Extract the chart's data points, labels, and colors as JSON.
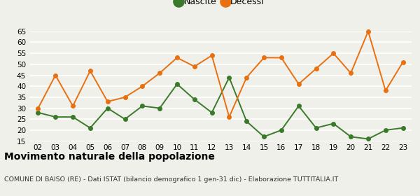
{
  "years": [
    "02",
    "03",
    "04",
    "05",
    "06",
    "07",
    "08",
    "09",
    "10",
    "11",
    "12",
    "13",
    "14",
    "15",
    "16",
    "17",
    "18",
    "19",
    "20",
    "21",
    "22",
    "23"
  ],
  "nascite": [
    28,
    26,
    26,
    21,
    30,
    25,
    31,
    30,
    41,
    34,
    28,
    44,
    24,
    17,
    20,
    31,
    21,
    23,
    17,
    16,
    20,
    21
  ],
  "decessi": [
    30,
    45,
    31,
    47,
    33,
    35,
    40,
    46,
    53,
    49,
    54,
    26,
    44,
    53,
    53,
    41,
    48,
    55,
    46,
    65,
    38,
    51
  ],
  "nascite_color": "#3a7a2a",
  "decessi_color": "#e87010",
  "background_color": "#f0f0eb",
  "grid_color": "#ffffff",
  "ylim": [
    15,
    65
  ],
  "yticks": [
    15,
    20,
    25,
    30,
    35,
    40,
    45,
    50,
    55,
    60,
    65
  ],
  "title": "Movimento naturale della popolazione",
  "subtitle": "COMUNE DI BAISO (RE) - Dati ISTAT (bilancio demografico 1 gen-31 dic) - Elaborazione TUTTITALIA.IT",
  "legend_nascite": "Nascite",
  "legend_decessi": "Decessi",
  "marker_size": 4,
  "line_width": 1.4,
  "tick_fontsize": 7.5,
  "title_fontsize": 10,
  "subtitle_fontsize": 6.8,
  "legend_fontsize": 9
}
